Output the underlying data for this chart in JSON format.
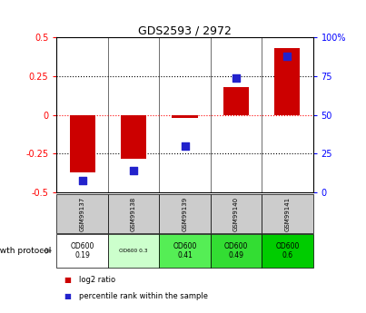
{
  "title": "GDS2593 / 2972",
  "samples": [
    "GSM99137",
    "GSM99138",
    "GSM99139",
    "GSM99140",
    "GSM99141"
  ],
  "log2_ratio": [
    -0.37,
    -0.28,
    -0.02,
    0.18,
    0.43
  ],
  "percentile_rank": [
    8,
    14,
    30,
    74,
    88
  ],
  "ylim_left": [
    -0.5,
    0.5
  ],
  "ylim_right": [
    0,
    100
  ],
  "bar_color": "#cc0000",
  "dot_color": "#2222cc",
  "protocol_labels": [
    "OD600\n0.19",
    "OD600 0.3",
    "OD600\n0.41",
    "OD600\n0.49",
    "OD600\n0.6"
  ],
  "protocol_bg": [
    "#ffffff",
    "#ccffcc",
    "#55ee55",
    "#33dd33",
    "#00cc00"
  ],
  "protocol_row_label": "growth protocol",
  "legend_red": "log2 ratio",
  "legend_blue": "percentile rank within the sample",
  "sample_header_bg": "#cccccc",
  "left_yticks": [
    -0.5,
    -0.25,
    0,
    0.25,
    0.5
  ],
  "left_yticklabels": [
    "-0.5",
    "-0.25",
    "0",
    "0.25",
    "0.5"
  ],
  "right_yticks": [
    0,
    25,
    50,
    75,
    100
  ],
  "right_yticklabels": [
    "0",
    "25",
    "50",
    "75",
    "100%"
  ]
}
